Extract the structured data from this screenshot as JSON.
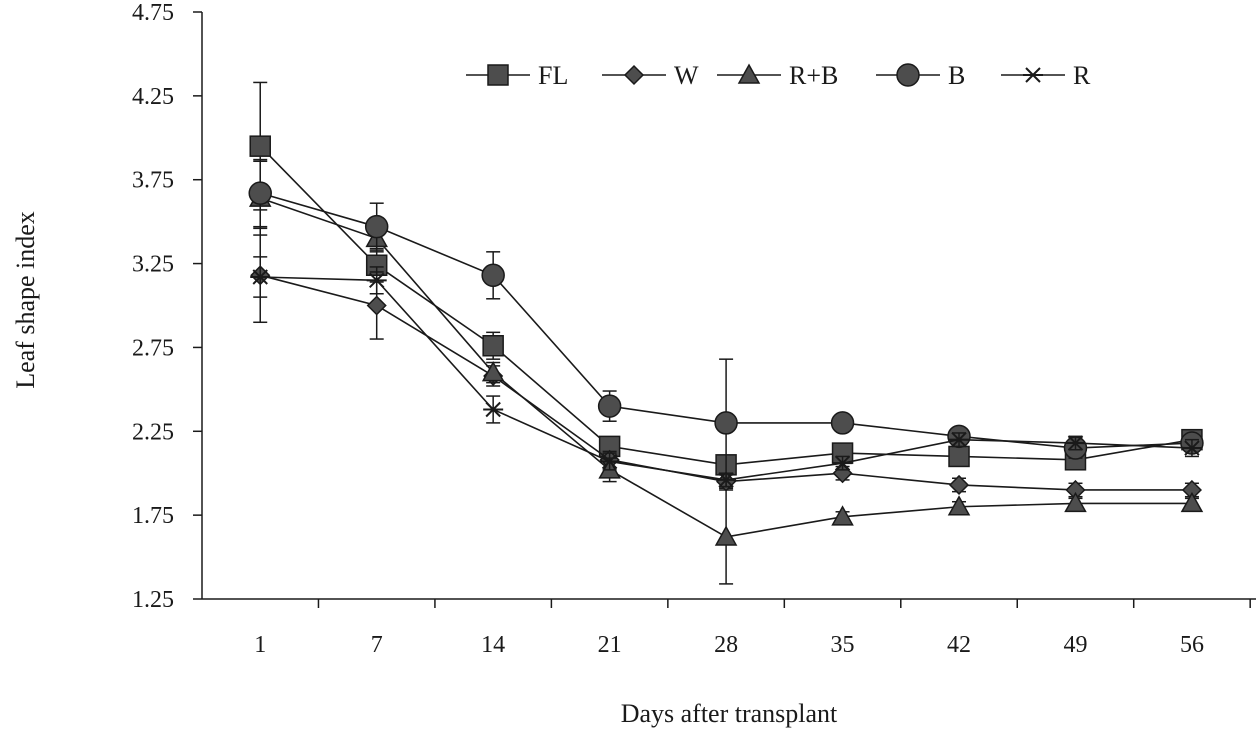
{
  "chart_data": {
    "type": "line",
    "title": "",
    "xlabel": "Days after transplant",
    "ylabel": "Leaf shape index",
    "categories": [
      "1",
      "7",
      "14",
      "21",
      "28",
      "35",
      "42",
      "49",
      "56"
    ],
    "yticks": [
      "1.25",
      "1.75",
      "2.25",
      "2.75",
      "3.25",
      "3.75",
      "4.25",
      "4.75"
    ],
    "ylim": [
      1.25,
      4.75
    ],
    "grid": false,
    "legend_position": "top-right",
    "error_bars": true,
    "series": [
      {
        "name": "FL",
        "marker": "square",
        "values": [
          3.95,
          3.24,
          2.76,
          2.16,
          2.05,
          2.12,
          2.1,
          2.08,
          2.2
        ],
        "errors": [
          0.38,
          0.1,
          0.08,
          0.05,
          0.04,
          0.05,
          0.05,
          0.05,
          0.05
        ]
      },
      {
        "name": "W",
        "marker": "diamond",
        "values": [
          3.18,
          3.0,
          2.58,
          2.08,
          1.95,
          2.0,
          1.93,
          1.9,
          1.9
        ],
        "errors": [
          0.28,
          0.2,
          0.06,
          0.05,
          0.04,
          0.04,
          0.04,
          0.04,
          0.04
        ]
      },
      {
        "name": "R+B",
        "marker": "triangle",
        "values": [
          3.64,
          3.4,
          2.6,
          2.02,
          1.62,
          1.74,
          1.8,
          1.82,
          1.82
        ],
        "errors": [
          0.22,
          0.08,
          0.06,
          0.07,
          0.28,
          0.03,
          0.03,
          0.03,
          0.03
        ]
      },
      {
        "name": "B",
        "marker": "circle",
        "values": [
          3.67,
          3.47,
          3.18,
          2.4,
          2.3,
          2.3,
          2.22,
          2.15,
          2.18
        ],
        "errors": [
          0.2,
          0.14,
          0.14,
          0.09,
          0.38,
          0.05,
          0.05,
          0.06,
          0.05
        ]
      },
      {
        "name": "R",
        "marker": "asterisk",
        "values": [
          3.17,
          3.15,
          2.38,
          2.07,
          1.96,
          2.06,
          2.2,
          2.18,
          2.15
        ],
        "errors": [
          0.12,
          0.08,
          0.08,
          0.05,
          0.04,
          0.04,
          0.04,
          0.04,
          0.05
        ]
      }
    ]
  },
  "colors": {
    "series_fill": "#4d4d4d",
    "series_stroke": "#1a1a1a",
    "axis": "#1a1a1a",
    "background": "#ffffff"
  }
}
